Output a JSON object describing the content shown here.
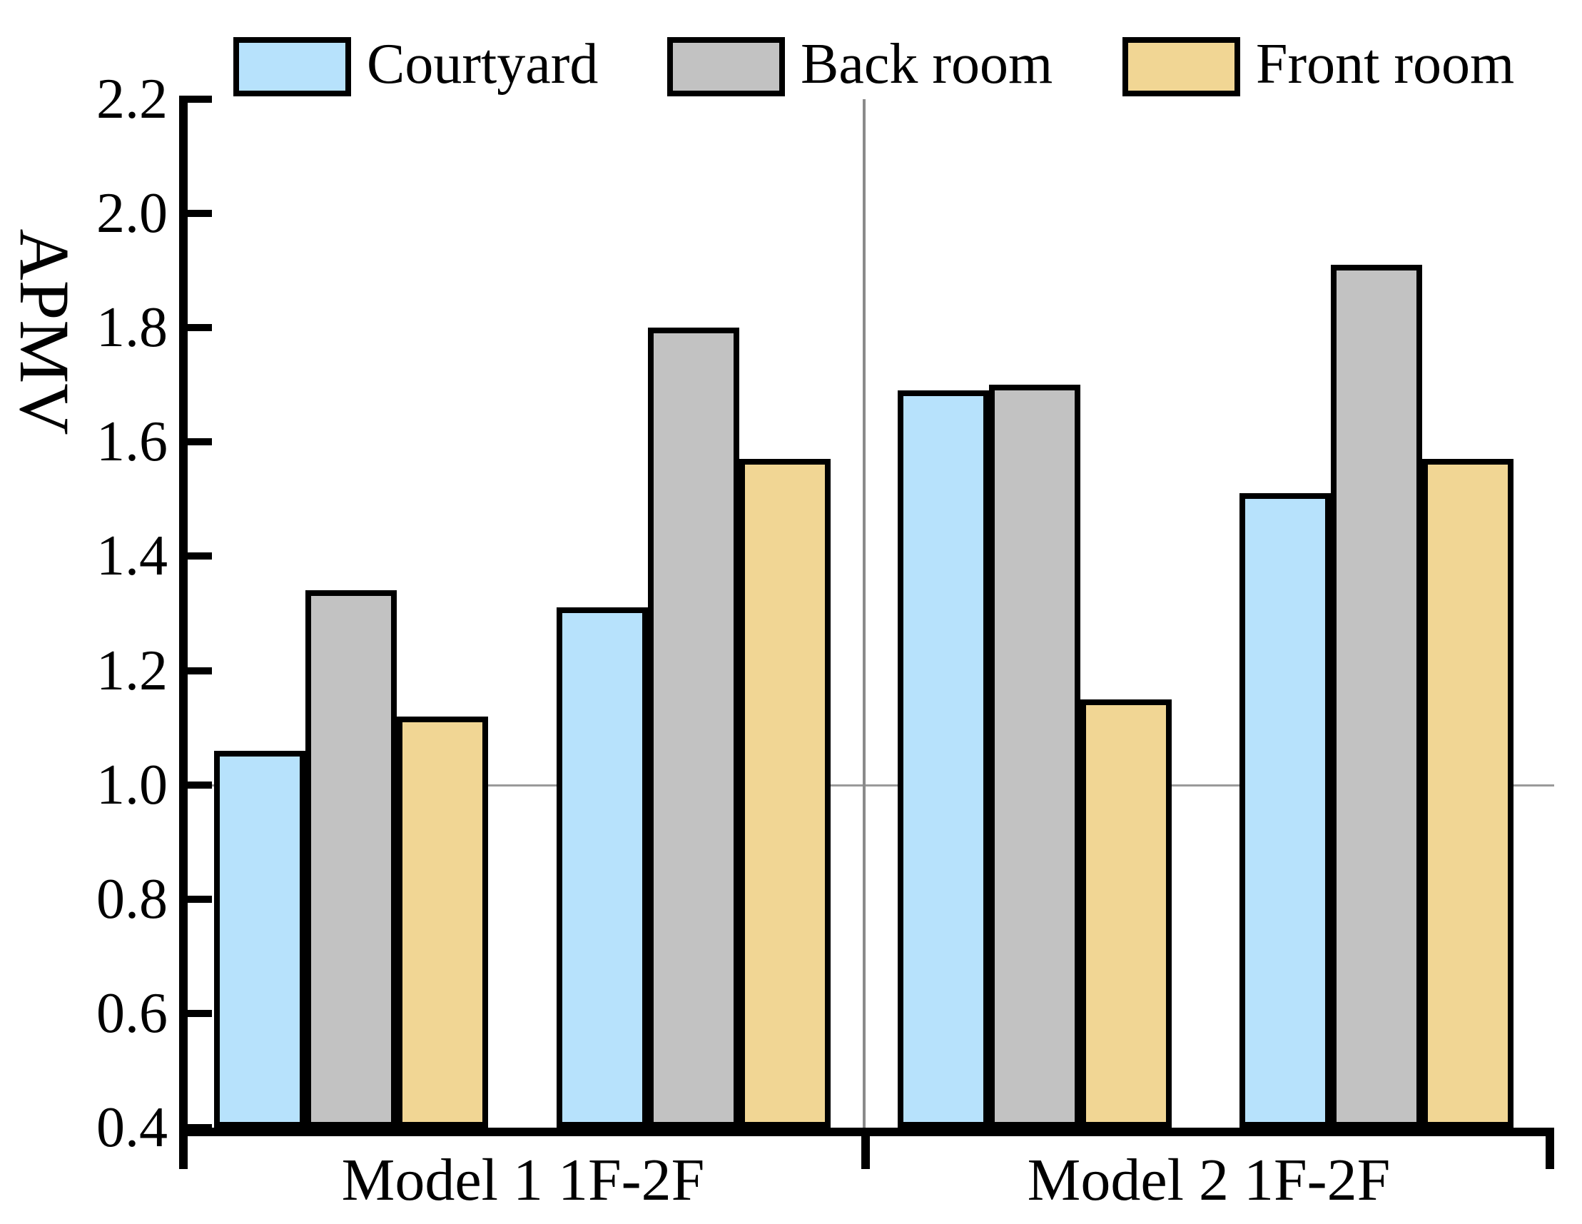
{
  "chart_data": {
    "type": "bar",
    "title": "",
    "ylabel": "APMV",
    "ylim": [
      0.4,
      2.2
    ],
    "ytick_step": 0.2,
    "ytick_labels": [
      "2.2",
      "2.0",
      "1.8",
      "1.6",
      "1.4",
      "1.2",
      "1.0",
      "0.8",
      "0.6",
      "0.4"
    ],
    "reference_line_y": 1.0,
    "categories": [
      "Model 1 1F-2F",
      "Model 2 1F-2F"
    ],
    "groups_per_category": 2,
    "series": [
      {
        "name": "Courtyard",
        "color": "#b7e2fc",
        "values": [
          1.06,
          1.31,
          1.69,
          1.51
        ]
      },
      {
        "name": "Back room",
        "color": "#c2c2c2",
        "values": [
          1.34,
          1.8,
          1.7,
          1.91
        ]
      },
      {
        "name": "Front room",
        "color": "#f1d694",
        "values": [
          1.12,
          1.57,
          1.15,
          1.57
        ]
      }
    ],
    "legend_position": "top",
    "grid": "single gray reference line at y=1.0; gray vertical divider between categories"
  },
  "colors": {
    "axis": "#000000",
    "bar_border": "#000000",
    "divider_line": "#8a8a8a",
    "reference_line": "#9a9a9a",
    "background": "#ffffff"
  }
}
